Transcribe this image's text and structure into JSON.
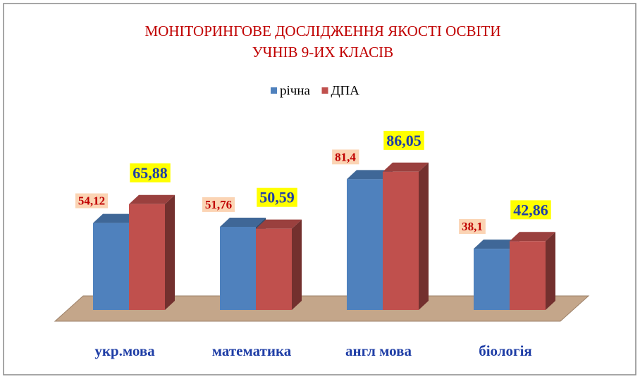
{
  "chart_data": {
    "type": "bar3d",
    "title": "МОНІТОРИНГОВЕ ДОСЛІДЖЕННЯ ЯКОСТІ ОСВІТИ",
    "subtitle": "УЧНІВ 9-ИХ КЛАСІВ",
    "categories": [
      "укр.мова",
      "математика",
      "англ мова",
      "біологія"
    ],
    "series": [
      {
        "name": "річна",
        "color": "#4f81bd",
        "values": [
          54.12,
          51.76,
          81.4,
          38.1
        ],
        "value_labels": [
          "54,12",
          "51,76",
          "81,4",
          "38,1"
        ]
      },
      {
        "name": "ДПА",
        "color": "#c0504d",
        "values": [
          65.88,
          50.59,
          86.05,
          42.86
        ],
        "value_labels": [
          "65,88",
          "50,59",
          "86,05",
          "42,86"
        ]
      }
    ]
  }
}
